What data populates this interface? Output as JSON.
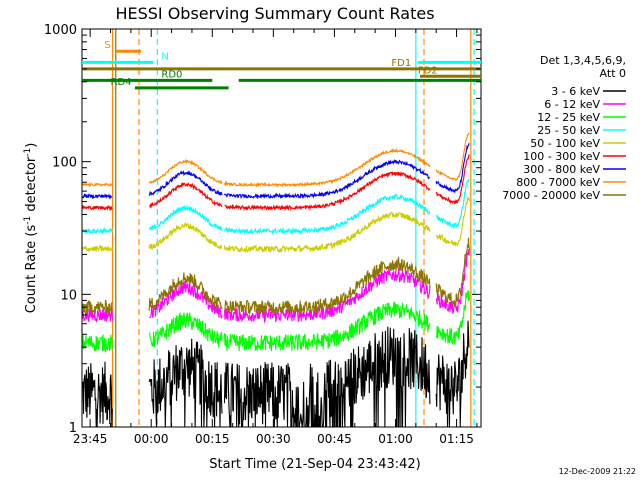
{
  "chart_data": {
    "type": "line",
    "title": "HESSI Observing Summary Count Rates",
    "xlabel": "Start Time (21-Sep-04 23:43:42)",
    "ylabel": "Count Rate (s⁻¹ detector⁻¹)",
    "ylabel_parts": {
      "main": "Count Rate (s",
      "exp1": "-1",
      "mid": " detector",
      "exp2": "-1",
      "end": ")"
    },
    "y_scale": "log",
    "ylim": [
      1,
      1000
    ],
    "xlim_minutes": [
      -2.0,
      96.0
    ],
    "x_ticks": [
      {
        "minute": 0,
        "label": "23:45"
      },
      {
        "minute": 15,
        "label": "00:00"
      },
      {
        "minute": 30,
        "label": "00:15"
      },
      {
        "minute": 45,
        "label": "00:30"
      },
      {
        "minute": 60,
        "label": "00:45"
      },
      {
        "minute": 75,
        "label": "01:00"
      },
      {
        "minute": 90,
        "label": "01:15"
      }
    ],
    "y_ticks": [
      {
        "value": 1,
        "label": "1"
      },
      {
        "value": 10,
        "label": "10"
      },
      {
        "value": 100,
        "label": "100"
      },
      {
        "value": 1000,
        "label": "1000"
      }
    ],
    "legend": {
      "header1": "Det 1,3,4,5,6,9,",
      "header2": "Att 0",
      "placement": "right"
    },
    "series": [
      {
        "name": "3 - 6 keV",
        "color": "#000000",
        "level": 1.8,
        "bump": 1.5,
        "noise": 0.55,
        "dips": true
      },
      {
        "name": "6 - 12 keV",
        "color": "#ff00ff",
        "level": 7.0,
        "bump": 1.6,
        "noise": 0.12,
        "dips": false
      },
      {
        "name": "12 - 25 keV",
        "color": "#00ff00",
        "level": 4.3,
        "bump": 1.3,
        "noise": 0.15,
        "dips": false
      },
      {
        "name": "25 - 50 keV",
        "color": "#00ffff",
        "level": 30,
        "bump": 1.35,
        "noise": 0.04,
        "dips": false
      },
      {
        "name": "50 - 100 keV",
        "color": "#cccc00",
        "level": 22,
        "bump": 1.35,
        "noise": 0.05,
        "dips": false
      },
      {
        "name": "100 - 300 keV",
        "color": "#ff0000",
        "level": 45,
        "bump": 1.35,
        "noise": 0.03,
        "dips": false
      },
      {
        "name": "300 - 800 keV",
        "color": "#0000ff",
        "level": 55,
        "bump": 1.35,
        "noise": 0.03,
        "dips": false
      },
      {
        "name": "800 - 7000 keV",
        "color": "#ff8800",
        "level": 67,
        "bump": 1.35,
        "noise": 0.02,
        "dips": false
      },
      {
        "name": "7000 - 20000 keV",
        "color": "#8b7500",
        "level": 8.0,
        "bump": 1.7,
        "noise": 0.12,
        "dips": false
      }
    ],
    "segments_minutes": [
      [
        -2,
        5.5
      ],
      [
        14.5,
        32.5
      ],
      [
        33,
        61
      ],
      [
        61,
        83.5
      ],
      [
        85,
        93.2
      ]
    ],
    "flags": [
      {
        "label": "S",
        "color": "#ff8800",
        "y": 680,
        "from": 6.5,
        "to": 12.5,
        "label_at": 3.5
      },
      {
        "label": "N",
        "color": "#00ffff",
        "y": 560,
        "from": -2,
        "to": 15.5,
        "label_at": 17.5,
        "extra_from": 80.5,
        "extra_to": 96
      },
      {
        "label": "FD1",
        "color": "#8b7500",
        "y": 500,
        "from": -2,
        "to": 96,
        "label_at": 74
      },
      {
        "label": "FD2",
        "color": "#8b7500",
        "y": 440,
        "from": 81,
        "to": 96,
        "label_at": 80.5
      },
      {
        "label": "RD0",
        "color": "#008000",
        "y": 410,
        "from": -2,
        "to": 30,
        "label_at": 17.5,
        "extra_from": 36.5,
        "extra_to": 96
      },
      {
        "label": "RD4",
        "color": "#008000",
        "y": 360,
        "from": 11,
        "to": 34,
        "label_at": 5
      }
    ],
    "vlines": [
      {
        "minute": 5.5,
        "color": "#ff8800",
        "dashed": false
      },
      {
        "minute": 6.3,
        "color": "#8b7500",
        "dashed": false
      },
      {
        "minute": 12.0,
        "color": "#ff8800",
        "dashed": true
      },
      {
        "minute": 16.5,
        "color": "#00ffff",
        "dashed": true
      },
      {
        "minute": 80.0,
        "color": "#00ffff",
        "dashed": false
      },
      {
        "minute": 82.0,
        "color": "#ff8800",
        "dashed": true
      },
      {
        "minute": 93.5,
        "color": "#ff8800",
        "dashed": false
      },
      {
        "minute": 94.3,
        "color": "#00ffff",
        "dashed": true
      }
    ]
  },
  "footer": {
    "date": "12-Dec-2009 21:22"
  }
}
